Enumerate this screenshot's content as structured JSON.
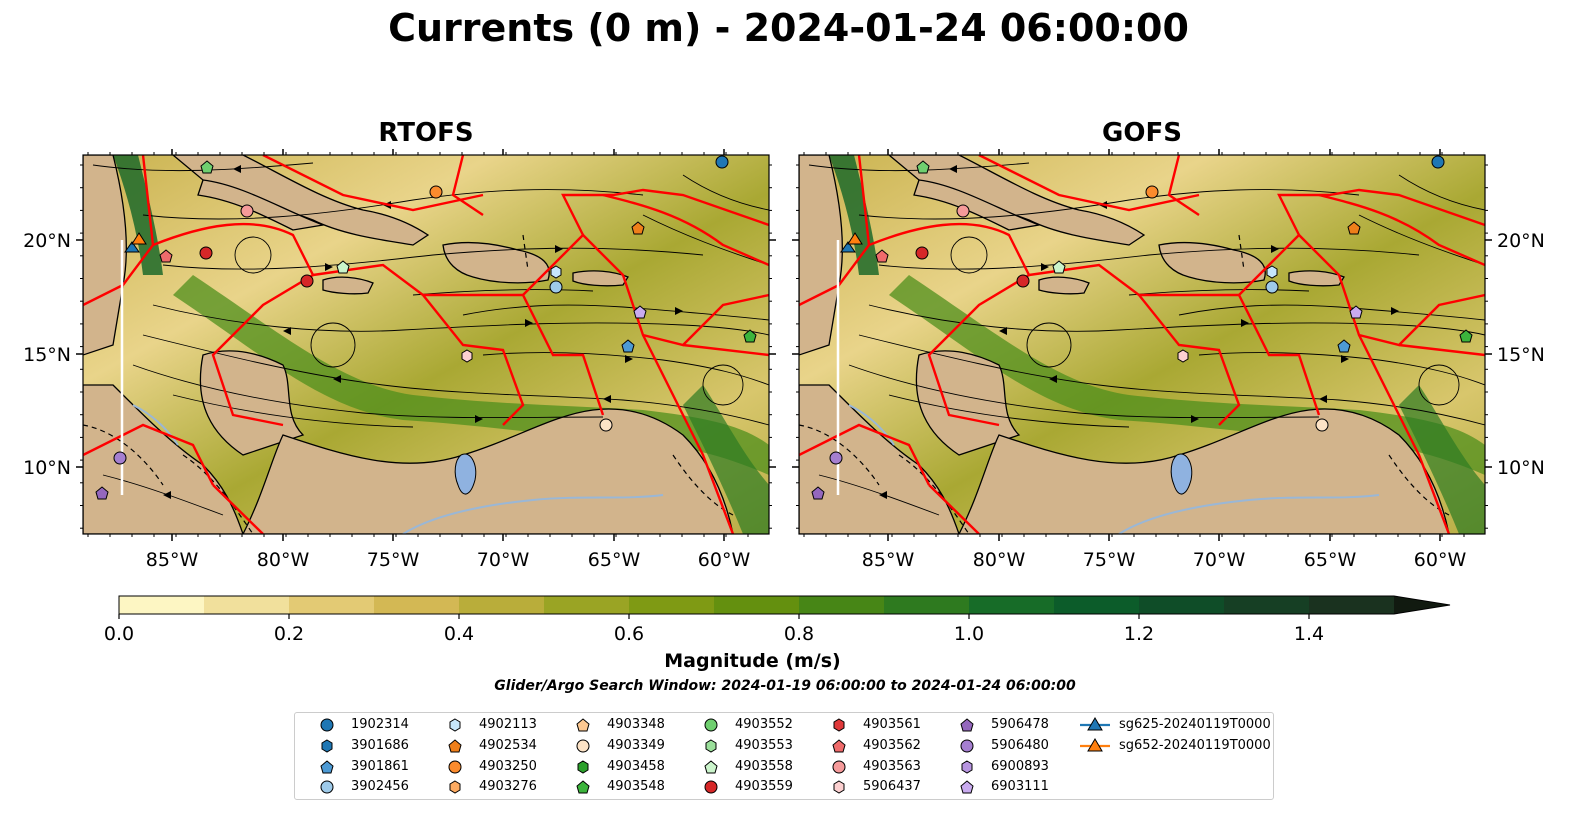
{
  "title": "Currents (0 m) - 2024-01-24 06:00:00",
  "panels": [
    {
      "title": "RTOFS"
    },
    {
      "title": "GOFS"
    }
  ],
  "axes": {
    "lon_ticks": [
      "85°W",
      "80°W",
      "75°W",
      "70°W",
      "65°W",
      "60°W"
    ],
    "lat_ticks": [
      "20°N",
      "15°N",
      "10°N"
    ]
  },
  "colorbar": {
    "label": "Magnitude (m/s)",
    "range": [
      0,
      1.5
    ],
    "extend": "max",
    "ticks": [
      "0.0",
      "0.2",
      "0.4",
      "0.6",
      "0.8",
      "1.0",
      "1.2",
      "1.4"
    ],
    "colors": [
      "#fdf6c3",
      "#f1e09c",
      "#e3ca74",
      "#d3b854",
      "#b9ad3a",
      "#9aa424",
      "#7f9a14",
      "#64900f",
      "#478616",
      "#2e7a1f",
      "#176c28",
      "#0c5c2a",
      "#0f4d28",
      "#163f24",
      "#1a321f"
    ]
  },
  "search_window": "Glider/Argo Search Window: 2024-01-19 06:00:00 to 2024-01-24 06:00:00",
  "colors": {
    "land": "#d2b48c",
    "eez_boundary": "#ff0000",
    "glider_track": "#ffffff",
    "lake": "#8fb2e0"
  },
  "legend": [
    {
      "label": "1902314",
      "marker": "circle",
      "color": "#1f77b4"
    },
    {
      "label": "3901686",
      "marker": "hexagon",
      "color": "#1f77b4"
    },
    {
      "label": "3901861",
      "marker": "pentagon",
      "color": "#4d9ad4"
    },
    {
      "label": "3902456",
      "marker": "circle",
      "color": "#9ecae9"
    },
    {
      "label": "4902113",
      "marker": "hexagon",
      "color": "#c6e6fb"
    },
    {
      "label": "4902534",
      "marker": "pentagon",
      "color": "#ef7f1a"
    },
    {
      "label": "4903250",
      "marker": "circle",
      "color": "#fb8b2d"
    },
    {
      "label": "4903276",
      "marker": "hexagon",
      "color": "#fdab62"
    },
    {
      "label": "4903348",
      "marker": "pentagon",
      "color": "#fdc891"
    },
    {
      "label": "4903349",
      "marker": "circle",
      "color": "#fde3c6"
    },
    {
      "label": "4903458",
      "marker": "hexagon",
      "color": "#2ca02c"
    },
    {
      "label": "4903548",
      "marker": "pentagon",
      "color": "#3cb43c"
    },
    {
      "label": "4903552",
      "marker": "circle",
      "color": "#6fcf6f"
    },
    {
      "label": "4903553",
      "marker": "hexagon",
      "color": "#9be09b"
    },
    {
      "label": "4903558",
      "marker": "pentagon",
      "color": "#cbf4cb"
    },
    {
      "label": "4903559",
      "marker": "circle",
      "color": "#d62728"
    },
    {
      "label": "4903561",
      "marker": "hexagon",
      "color": "#e0393a"
    },
    {
      "label": "4903562",
      "marker": "pentagon",
      "color": "#ef6b6b"
    },
    {
      "label": "4903563",
      "marker": "circle",
      "color": "#f59a9a"
    },
    {
      "label": "5906437",
      "marker": "hexagon",
      "color": "#fcd0d0"
    },
    {
      "label": "5906478",
      "marker": "pentagon",
      "color": "#9467bd"
    },
    {
      "label": "5906480",
      "marker": "circle",
      "color": "#a57fd0"
    },
    {
      "label": "6900893",
      "marker": "hexagon",
      "color": "#b795e0"
    },
    {
      "label": "6903111",
      "marker": "pentagon",
      "color": "#c9abef"
    },
    {
      "label": "sg625-20240119T0000",
      "marker": "triangle-line",
      "color": "#1f77b4"
    },
    {
      "label": "sg652-20240119T0000",
      "marker": "triangle-line",
      "color": "#ff7f0e"
    }
  ]
}
